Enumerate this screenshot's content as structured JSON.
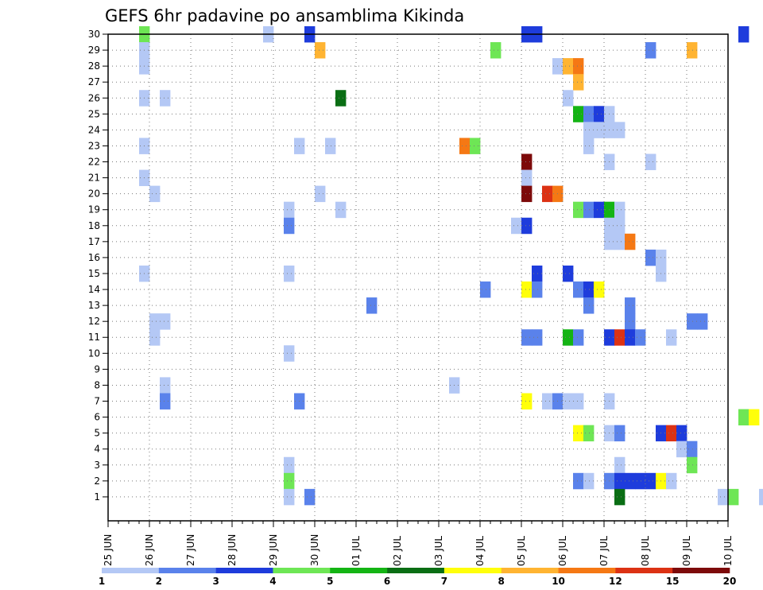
{
  "chart_data": {
    "type": "heatmap",
    "title": "GEFS 6hr padavine po ansamblima Kikinda",
    "xlabel": "",
    "ylabel": "",
    "x_tick_labels": [
      "25 JUN",
      "26 JUN",
      "27 JUN",
      "28 JUN",
      "29 JUN",
      "30 JUN",
      "01 JUL",
      "02 JUL",
      "03 JUL",
      "04 JUL",
      "05 JUL",
      "06 JUL",
      "07 JUL",
      "08 JUL",
      "09 JUL",
      "10 JUL"
    ],
    "y_tick_labels": [
      "1",
      "2",
      "3",
      "4",
      "5",
      "6",
      "7",
      "8",
      "9",
      "10",
      "11",
      "12",
      "13",
      "14",
      "15",
      "16",
      "17",
      "18",
      "19",
      "20",
      "21",
      "22",
      "23",
      "24",
      "25",
      "26",
      "27",
      "28",
      "29",
      "30"
    ],
    "y_members": 30,
    "steps_per_day": 4,
    "days": 15,
    "grid": true,
    "legend_placement": "bottom",
    "colorbar": {
      "labels": [
        "1",
        "2",
        "3",
        "4",
        "5",
        "6",
        "7",
        "8",
        "10",
        "12",
        "15",
        "20"
      ],
      "colors": [
        "#b4c8f5",
        "#5a82eb",
        "#1e3cdc",
        "#6ee655",
        "#14b414",
        "#0a6e14",
        "#ffff0a",
        "#ffb432",
        "#f57814",
        "#dc3214",
        "#7d0a0a"
      ]
    },
    "cells": [
      [
        3,
        30,
        4
      ],
      [
        15,
        30,
        1
      ],
      [
        19,
        30,
        3
      ],
      [
        40,
        30,
        3
      ],
      [
        41,
        30,
        3
      ],
      [
        61,
        30,
        3
      ],
      [
        3,
        29,
        1
      ],
      [
        20,
        29,
        8
      ],
      [
        37,
        29,
        4
      ],
      [
        52,
        29,
        2
      ],
      [
        56,
        29,
        8
      ],
      [
        3,
        28,
        1
      ],
      [
        43,
        28,
        1
      ],
      [
        44,
        28,
        8
      ],
      [
        45,
        28,
        9
      ],
      [
        45,
        27,
        8
      ],
      [
        68,
        27,
        2
      ],
      [
        69,
        27,
        1
      ],
      [
        3,
        26,
        1
      ],
      [
        5,
        26,
        1
      ],
      [
        22,
        26,
        6
      ],
      [
        44,
        26,
        1
      ],
      [
        69,
        26,
        1
      ],
      [
        45,
        25,
        5
      ],
      [
        46,
        25,
        2
      ],
      [
        47,
        25,
        3
      ],
      [
        48,
        25,
        1
      ],
      [
        74,
        25,
        1
      ],
      [
        78,
        25,
        4
      ],
      [
        79,
        25,
        3
      ],
      [
        82,
        25,
        5
      ],
      [
        46,
        24,
        1
      ],
      [
        47,
        24,
        1
      ],
      [
        48,
        24,
        1
      ],
      [
        49,
        24,
        1
      ],
      [
        64,
        24,
        1
      ],
      [
        65,
        24,
        1
      ],
      [
        66,
        24,
        1
      ],
      [
        3,
        23,
        1
      ],
      [
        18,
        23,
        1
      ],
      [
        21,
        23,
        1
      ],
      [
        34,
        23,
        9
      ],
      [
        35,
        23,
        4
      ],
      [
        46,
        23,
        1
      ],
      [
        77,
        23,
        2
      ],
      [
        78,
        23,
        8
      ],
      [
        40,
        22,
        11
      ],
      [
        48,
        22,
        1
      ],
      [
        52,
        22,
        1
      ],
      [
        64,
        22,
        9
      ],
      [
        65,
        22,
        1
      ],
      [
        66,
        22,
        11
      ],
      [
        67,
        22,
        6
      ],
      [
        69,
        22,
        3
      ],
      [
        3,
        21,
        1
      ],
      [
        40,
        21,
        1
      ],
      [
        64,
        21,
        4
      ],
      [
        65,
        21,
        1
      ],
      [
        67,
        21,
        11
      ],
      [
        68,
        21,
        3
      ],
      [
        4,
        20,
        1
      ],
      [
        20,
        20,
        1
      ],
      [
        40,
        20,
        11
      ],
      [
        42,
        20,
        10
      ],
      [
        43,
        20,
        9
      ],
      [
        17,
        19,
        1
      ],
      [
        22,
        19,
        1
      ],
      [
        45,
        19,
        4
      ],
      [
        46,
        19,
        2
      ],
      [
        47,
        19,
        3
      ],
      [
        48,
        19,
        5
      ],
      [
        49,
        19,
        1
      ],
      [
        17,
        18,
        2
      ],
      [
        39,
        18,
        1
      ],
      [
        40,
        18,
        3
      ],
      [
        48,
        18,
        1
      ],
      [
        49,
        18,
        1
      ],
      [
        73,
        18,
        5
      ],
      [
        48,
        17,
        1
      ],
      [
        49,
        17,
        1
      ],
      [
        50,
        17,
        9
      ],
      [
        75,
        17,
        5
      ],
      [
        52,
        16,
        2
      ],
      [
        53,
        16,
        1
      ],
      [
        3,
        15,
        1
      ],
      [
        17,
        15,
        1
      ],
      [
        41,
        15,
        3
      ],
      [
        44,
        15,
        3
      ],
      [
        53,
        15,
        1
      ],
      [
        36,
        14,
        2
      ],
      [
        40,
        14,
        7
      ],
      [
        41,
        14,
        2
      ],
      [
        45,
        14,
        2
      ],
      [
        46,
        14,
        3
      ],
      [
        47,
        14,
        7
      ],
      [
        68,
        14,
        3
      ],
      [
        78,
        14,
        1
      ],
      [
        79,
        14,
        1
      ],
      [
        82,
        14,
        1
      ],
      [
        25,
        13,
        2
      ],
      [
        46,
        13,
        2
      ],
      [
        50,
        13,
        2
      ],
      [
        74,
        13,
        3
      ],
      [
        4,
        12,
        1
      ],
      [
        5,
        12,
        1
      ],
      [
        50,
        12,
        2
      ],
      [
        56,
        12,
        2
      ],
      [
        57,
        12,
        2
      ],
      [
        64,
        12,
        1
      ],
      [
        73,
        12,
        1
      ],
      [
        74,
        12,
        5
      ],
      [
        4,
        11,
        1
      ],
      [
        40,
        11,
        2
      ],
      [
        41,
        11,
        2
      ],
      [
        44,
        11,
        5
      ],
      [
        45,
        11,
        2
      ],
      [
        48,
        11,
        3
      ],
      [
        49,
        11,
        10
      ],
      [
        50,
        11,
        3
      ],
      [
        51,
        11,
        2
      ],
      [
        54,
        11,
        1
      ],
      [
        64,
        11,
        1
      ],
      [
        68,
        11,
        4
      ],
      [
        80,
        11,
        4
      ],
      [
        17,
        10,
        1
      ],
      [
        64,
        10,
        4
      ],
      [
        65,
        10,
        3
      ],
      [
        70,
        10,
        5
      ],
      [
        78,
        9,
        1
      ],
      [
        5,
        8,
        1
      ],
      [
        33,
        8,
        1
      ],
      [
        78,
        8,
        1
      ],
      [
        82,
        8,
        2
      ],
      [
        5,
        7,
        2
      ],
      [
        18,
        7,
        2
      ],
      [
        40,
        7,
        7
      ],
      [
        42,
        7,
        1
      ],
      [
        43,
        7,
        2
      ],
      [
        44,
        7,
        1
      ],
      [
        45,
        7,
        1
      ],
      [
        48,
        7,
        1
      ],
      [
        74,
        7,
        4
      ],
      [
        75,
        7,
        1
      ],
      [
        76,
        7,
        1
      ],
      [
        81,
        7,
        2
      ],
      [
        61,
        6,
        4
      ],
      [
        62,
        6,
        7
      ],
      [
        64,
        6,
        4
      ],
      [
        65,
        6,
        2
      ],
      [
        67,
        6,
        2
      ],
      [
        77,
        6,
        1
      ],
      [
        78,
        6,
        1
      ],
      [
        80,
        6,
        2
      ],
      [
        81,
        6,
        4
      ],
      [
        82,
        6,
        6
      ],
      [
        45,
        5,
        7
      ],
      [
        46,
        5,
        4
      ],
      [
        48,
        5,
        1
      ],
      [
        49,
        5,
        2
      ],
      [
        53,
        5,
        3
      ],
      [
        54,
        5,
        10
      ],
      [
        55,
        5,
        3
      ],
      [
        64,
        5,
        3
      ],
      [
        65,
        5,
        4
      ],
      [
        66,
        5,
        2
      ],
      [
        78,
        5,
        5
      ],
      [
        82,
        5,
        1
      ],
      [
        55,
        4,
        1
      ],
      [
        56,
        4,
        2
      ],
      [
        73,
        4,
        2
      ],
      [
        74,
        4,
        6
      ],
      [
        77,
        4,
        1
      ],
      [
        17,
        3,
        1
      ],
      [
        49,
        3,
        1
      ],
      [
        56,
        3,
        4
      ],
      [
        67,
        3,
        1
      ],
      [
        82,
        3,
        11
      ],
      [
        17,
        2,
        4
      ],
      [
        45,
        2,
        2
      ],
      [
        46,
        2,
        1
      ],
      [
        48,
        2,
        2
      ],
      [
        49,
        2,
        3
      ],
      [
        50,
        2,
        3
      ],
      [
        51,
        2,
        3
      ],
      [
        52,
        2,
        3
      ],
      [
        53,
        2,
        7
      ],
      [
        54,
        2,
        1
      ],
      [
        17,
        1,
        1
      ],
      [
        19,
        1,
        2
      ],
      [
        49,
        1,
        6
      ],
      [
        59,
        1,
        1
      ],
      [
        60,
        1,
        4
      ],
      [
        63,
        1,
        1
      ],
      [
        66,
        1,
        2
      ],
      [
        69,
        1,
        6
      ],
      [
        70,
        1,
        4
      ]
    ]
  }
}
